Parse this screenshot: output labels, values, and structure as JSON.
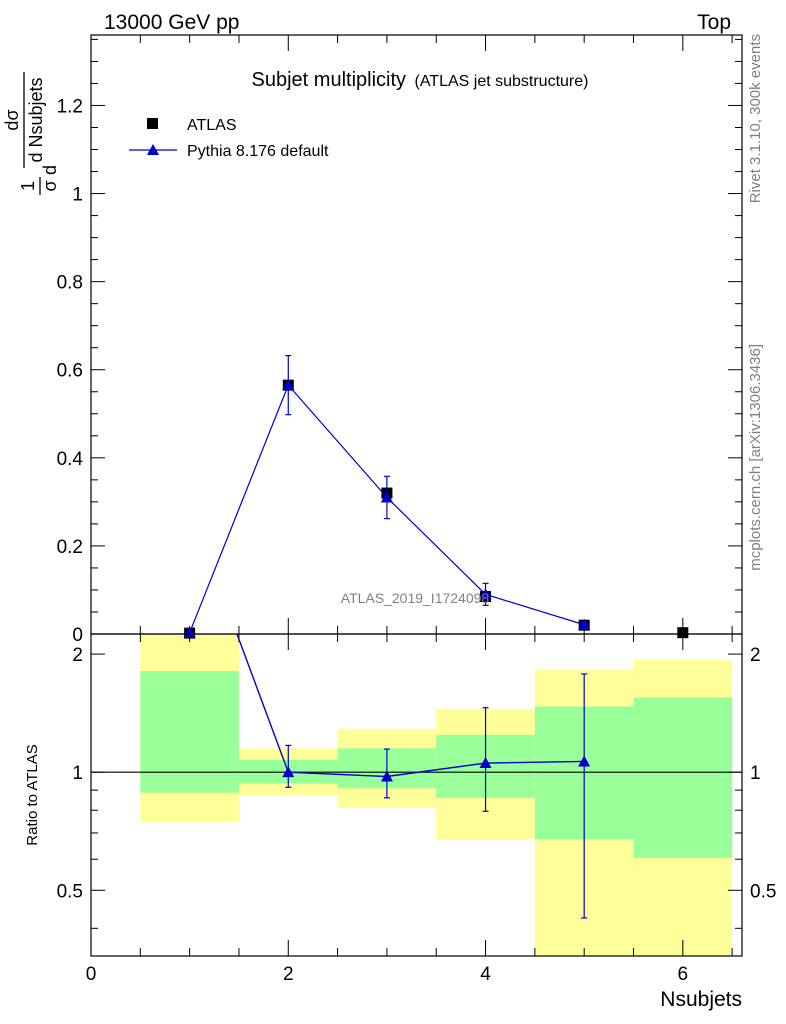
{
  "header": {
    "energy_label": "13000 GeV pp",
    "process_label": "Top",
    "rivet_label": "Rivet 3.1.10,  300k events",
    "mcplots_label": "mcplots.cern.ch [arXiv:1306.3436]",
    "analysis_label": "ATLAS_2019_I1724098"
  },
  "colors": {
    "data": "#000000",
    "mc": "#0000cc",
    "band_inner": "#99ff99",
    "band_outer": "#ffff99"
  },
  "chart_data": [
    {
      "type": "scatter",
      "title": "Subjet multiplicity",
      "subtitle": "(ATLAS jet substructure)",
      "ylabel_parts": {
        "prefix": "1",
        "prefix_den": "σ",
        "num": "dσ",
        "den": "d Nsubjets"
      },
      "xlim": [
        0,
        6.6
      ],
      "ylim": [
        0,
        1.36
      ],
      "yticks": [
        0,
        0.2,
        0.4,
        0.6,
        0.8,
        1,
        1.2
      ],
      "ytick_labels": [
        "0",
        "0.2",
        "0.4",
        "0.6",
        "0.8",
        "1",
        "1.2"
      ],
      "legend_position": "top-left",
      "series": [
        {
          "name": "ATLAS",
          "marker": "square",
          "x": [
            1,
            2,
            3,
            4,
            5,
            6
          ],
          "y": [
            0.002,
            0.565,
            0.32,
            0.085,
            0.02,
            0.003
          ],
          "yerr": [
            0.001,
            0.01,
            0.01,
            0.006,
            0.003,
            0.001
          ]
        },
        {
          "name": "Pythia 8.176 default",
          "marker": "triangle",
          "x": [
            1,
            2,
            3,
            4,
            5
          ],
          "y": [
            0.003,
            0.565,
            0.31,
            0.09,
            0.021
          ],
          "yerr": [
            0.0005,
            0.067,
            0.048,
            0.025,
            0.004
          ]
        }
      ]
    },
    {
      "type": "scatter",
      "ylabel": "Ratio to ATLAS",
      "xlabel": "Nsubjets",
      "xlim": [
        0,
        6.6
      ],
      "ylim": [
        0.34,
        2.25
      ],
      "xticks": [
        0,
        2,
        4,
        6
      ],
      "xtick_labels": [
        "0",
        "2",
        "4",
        "6"
      ],
      "yticks": [
        0.5,
        1,
        2
      ],
      "ytick_labels": [
        "0.5",
        "1",
        "2"
      ],
      "log_y": true,
      "bands": [
        {
          "xlo": 0.5,
          "xhi": 1.5,
          "inner": [
            0.887,
            1.81
          ],
          "outer": [
            0.745,
            2.3
          ]
        },
        {
          "xlo": 1.5,
          "xhi": 2.5,
          "inner": [
            0.935,
            1.075
          ],
          "outer": [
            0.875,
            1.15
          ]
        },
        {
          "xlo": 2.5,
          "xhi": 3.5,
          "inner": [
            0.91,
            1.15
          ],
          "outer": [
            0.815,
            1.29
          ]
        },
        {
          "xlo": 3.5,
          "xhi": 4.5,
          "inner": [
            0.86,
            1.245
          ],
          "outer": [
            0.675,
            1.45
          ]
        },
        {
          "xlo": 4.5,
          "xhi": 5.5,
          "inner": [
            0.675,
            1.47
          ],
          "outer": [
            0.34,
            1.83
          ]
        },
        {
          "xlo": 5.5,
          "xhi": 6.5,
          "inner": [
            0.605,
            1.55
          ],
          "outer": [
            0.34,
            1.94
          ]
        }
      ],
      "series": [
        {
          "name": "Pythia 8.176 default",
          "marker": "triangle",
          "x": [
            2,
            3,
            4,
            5
          ],
          "y": [
            1.0,
            0.975,
            1.055,
            1.065
          ],
          "yerr_lo": [
            0.085,
            0.115,
            0.26,
            0.64
          ],
          "yerr_hi": [
            0.17,
            0.17,
            0.405,
            0.715
          ]
        }
      ]
    }
  ]
}
